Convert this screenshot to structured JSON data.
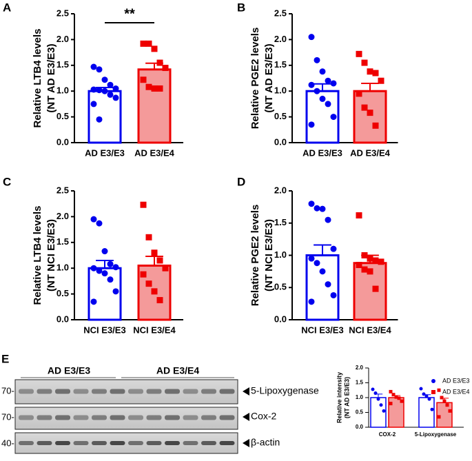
{
  "chart_data": [
    {
      "type": "bar_scatter",
      "label": "A",
      "ylabel": [
        "Relative LTB4 levels",
        "(NT AD E3/E3)"
      ],
      "categories": [
        "AD E3/E3",
        "AD E3/E4"
      ],
      "values": [
        1.0,
        1.42
      ],
      "errors": [
        0.07,
        0.12
      ],
      "points": [
        [
          1.47,
          1.42,
          1.22,
          1.12,
          1.05,
          1.03,
          1.02,
          1.0,
          0.93,
          0.87,
          0.75,
          0.45
        ],
        [
          1.92,
          1.92,
          1.82,
          1.55,
          1.45,
          1.22,
          1.08,
          1.05,
          1.05
        ]
      ],
      "colors": [
        "#0000ee",
        "#ee0000"
      ],
      "fills": [
        "#ffffff",
        "#f49a9a"
      ],
      "annotation": "**",
      "ylim": [
        0,
        2.5
      ],
      "yticks": [
        {
          "value": 0,
          "label": "0.0"
        },
        0.5,
        {
          "value": 1,
          "label": "1.0"
        },
        1.5,
        {
          "value": 2,
          "label": "2.0"
        },
        2.5
      ]
    },
    {
      "type": "bar_scatter",
      "label": "B",
      "ylabel": [
        "Relative PGE2 levels",
        "(NT AD E3/E3)"
      ],
      "categories": [
        "AD E3/E3",
        "AD E3/E4"
      ],
      "values": [
        1.0,
        1.0
      ],
      "errors": [
        0.14,
        0.15
      ],
      "points": [
        [
          2.05,
          1.6,
          1.38,
          1.2,
          1.15,
          1.12,
          1.0,
          0.85,
          0.75,
          0.5,
          0.35
        ],
        [
          1.72,
          1.55,
          1.38,
          1.35,
          1.2,
          0.95,
          0.68,
          0.58,
          0.33
        ]
      ],
      "colors": [
        "#0000ee",
        "#ee0000"
      ],
      "fills": [
        "#ffffff",
        "#f49a9a"
      ],
      "ylim": [
        0,
        2.5
      ],
      "yticks": [
        {
          "value": 0,
          "label": "0.0"
        },
        0.5,
        {
          "value": 1,
          "label": "1.0"
        },
        1.5,
        {
          "value": 2,
          "label": "2.0"
        },
        2.5
      ]
    },
    {
      "type": "bar_scatter",
      "label": "C",
      "ylabel": [
        "Relative LTB4 levels",
        "(NT NCI E3/E3)"
      ],
      "categories": [
        "NCI E3/E3",
        "NCI E3/E4"
      ],
      "values": [
        1.0,
        1.05
      ],
      "errors": [
        0.15,
        0.18
      ],
      "points": [
        [
          1.95,
          1.87,
          1.33,
          1.08,
          1.02,
          1.0,
          0.95,
          0.9,
          0.78,
          0.55,
          0.35
        ],
        [
          2.23,
          1.6,
          1.3,
          1.15,
          1.0,
          0.88,
          0.7,
          0.55,
          0.38
        ]
      ],
      "colors": [
        "#0000ee",
        "#ee0000"
      ],
      "fills": [
        "#ffffff",
        "#f49a9a"
      ],
      "ylim": [
        0,
        2.5
      ],
      "yticks": [
        {
          "value": 0,
          "label": "0.0"
        },
        0.5,
        {
          "value": 1,
          "label": "1.0"
        },
        1.5,
        {
          "value": 2,
          "label": "2.0"
        },
        2.5
      ]
    },
    {
      "type": "bar_scatter",
      "label": "D",
      "ylabel": [
        "Relative PGE2 levels",
        "(NT NCI E3/E3)"
      ],
      "categories": [
        "NCI E3/E3",
        "NCI E3/E4"
      ],
      "values": [
        1.0,
        0.88
      ],
      "errors": [
        0.16,
        0.12
      ],
      "points": [
        [
          1.8,
          1.73,
          1.72,
          1.55,
          1.1,
          0.95,
          0.88,
          0.75,
          0.55,
          0.38,
          0.28
        ],
        [
          1.62,
          1.0,
          0.95,
          0.92,
          0.9,
          0.85,
          0.78,
          0.75,
          0.48
        ]
      ],
      "colors": [
        "#0000ee",
        "#ee0000"
      ],
      "fills": [
        "#ffffff",
        "#f49a9a"
      ],
      "ylim": [
        0,
        2.0
      ],
      "yticks": [
        {
          "value": 0,
          "label": "0.0"
        },
        0.5,
        {
          "value": 1,
          "label": "1.0"
        },
        1.5,
        {
          "value": 2,
          "label": "2.0"
        }
      ]
    },
    {
      "type": "grouped_bar_scatter",
      "ylabel": [
        "Relative intensity",
        "(NT AD E3/E3)"
      ],
      "categories": [
        "COX-2",
        "5-Lipoxygenase"
      ],
      "series": [
        {
          "name": "AD E3/E3",
          "color": "#0000ee",
          "fill": "#ffffff",
          "values": [
            1.0,
            1.0
          ],
          "errors": [
            0.12,
            0.1
          ],
          "points": [
            [
              1.28,
              1.15,
              0.95,
              0.75,
              0.55
            ],
            [
              1.3,
              1.12,
              1.05,
              0.95,
              0.6
            ]
          ]
        },
        {
          "name": "AD E3/E4",
          "color": "#ee0000",
          "fill": "#f49a9a",
          "values": [
            1.0,
            0.83
          ],
          "errors": [
            0.07,
            0.15
          ],
          "points": [
            [
              1.2,
              1.1,
              1.02,
              0.98,
              0.88,
              0.8
            ],
            [
              1.25,
              1.0,
              0.88,
              0.75,
              0.55,
              0.35
            ]
          ]
        }
      ],
      "ylim": [
        0,
        2.0
      ],
      "yticks": [
        {
          "value": 0,
          "label": "0.0"
        },
        0.5,
        {
          "value": 1,
          "label": "1.0"
        },
        1.5,
        {
          "value": 2,
          "label": "2.0"
        }
      ]
    }
  ],
  "blot": {
    "label": "E",
    "groups": [
      "AD  E3/E3",
      "AD  E3/E4"
    ],
    "markers": [
      "70-",
      "70-",
      "40-"
    ],
    "bands": [
      "5-Lipoxygenase",
      "Cox-2",
      "β-actin"
    ]
  }
}
